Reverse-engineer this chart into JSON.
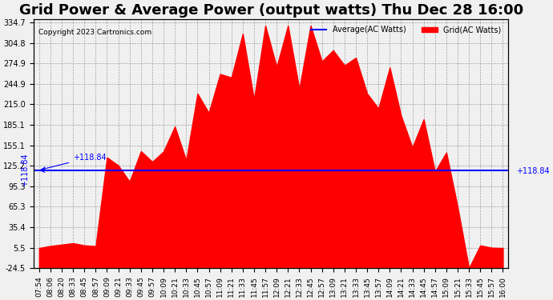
{
  "title": "Grid Power & Average Power (output watts) Thu Dec 28 16:00",
  "copyright": "Copyright 2023 Cartronics.com",
  "avg_label": "Average(AC Watts)",
  "grid_label": "Grid(AC Watts)",
  "avg_value": 118.84,
  "avg_color": "blue",
  "grid_color": "red",
  "yticks_right": [
    334.7,
    304.8,
    274.9,
    244.9,
    215.0,
    185.1,
    155.1,
    125.2,
    95.3,
    65.3,
    35.4,
    5.5,
    -24.5
  ],
  "ymin": -24.5,
  "ymax": 334.7,
  "background_color": "#f0f0f0",
  "title_fontsize": 13,
  "xtick_labels": [
    "07:54",
    "08:06",
    "08:20",
    "08:33",
    "08:45",
    "08:57",
    "09:09",
    "09:21",
    "09:33",
    "09:45",
    "09:57",
    "10:09",
    "10:21",
    "10:33",
    "10:45",
    "10:57",
    "11:09",
    "11:21",
    "11:33",
    "11:45",
    "11:57",
    "12:09",
    "12:21",
    "12:33",
    "12:45",
    "12:57",
    "13:09",
    "13:21",
    "13:33",
    "13:45",
    "13:57",
    "14:09",
    "14:21",
    "14:33",
    "14:45",
    "14:57",
    "15:09",
    "15:21",
    "15:33",
    "15:45",
    "15:57",
    "16:00"
  ]
}
